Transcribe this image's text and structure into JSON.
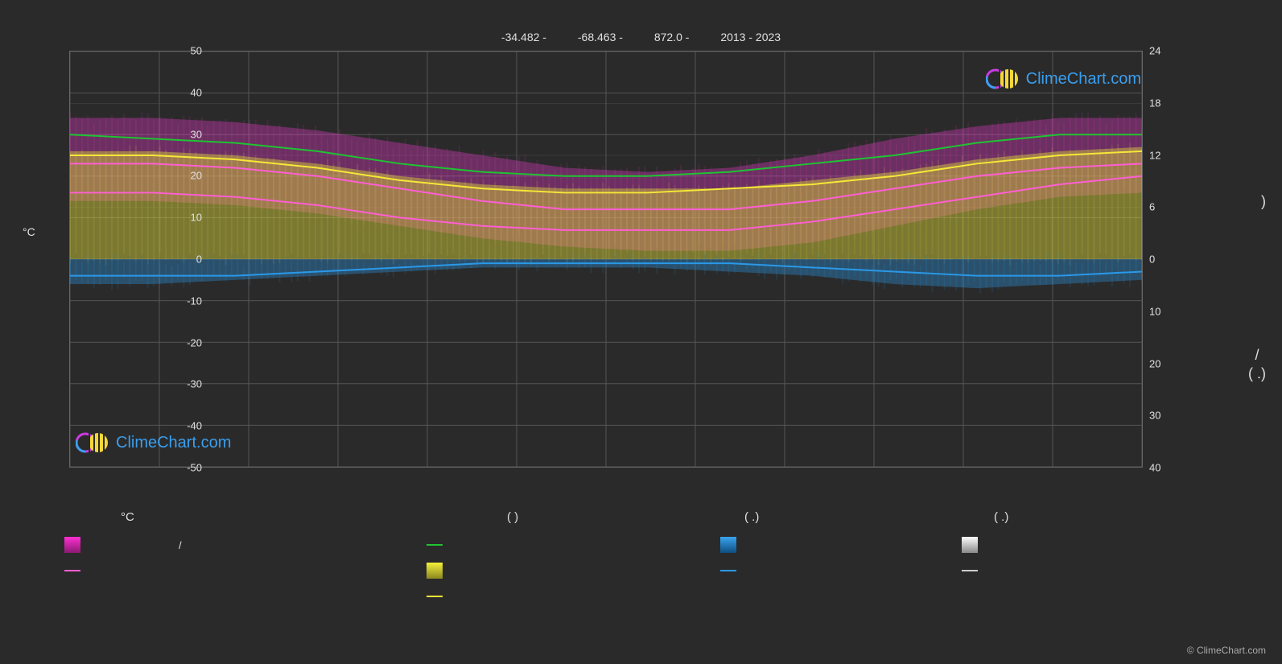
{
  "header": {
    "lat": "-34.482 -",
    "lon": "-68.463 -",
    "elev": "872.0 -",
    "years": "2013 - 2023"
  },
  "chart": {
    "type": "climate-chart",
    "background_color": "#2a2a2a",
    "plot_bg": "#333333",
    "grid_color": "#555555",
    "axis_left": {
      "title": "°C",
      "min": -50,
      "max": 50,
      "step": 10,
      "labels": [
        "50",
        "40",
        "30",
        "20",
        "10",
        "0",
        "-10",
        "-20",
        "-30",
        "-40",
        "-50"
      ]
    },
    "axis_right": {
      "top_title": ")",
      "mid_title_1": "/",
      "mid_title_2": "(   .)",
      "top_min": 0,
      "top_max": 24,
      "top_step": 6,
      "bot_min": 0,
      "bot_max": 40,
      "bot_step": 10,
      "labels_top": [
        "24",
        "18",
        "12",
        "6",
        "0"
      ],
      "labels_bot": [
        "10",
        "20",
        "30",
        "40"
      ]
    },
    "months_count": 12,
    "lines": {
      "green": {
        "color": "#1ec432",
        "width": 2,
        "values": [
          30,
          29,
          28,
          26,
          23,
          21,
          20,
          20,
          21,
          23,
          25,
          28,
          30,
          30
        ]
      },
      "yellow": {
        "color": "#f5e838",
        "width": 2,
        "values": [
          25,
          25,
          24,
          22,
          19,
          17,
          16,
          16,
          17,
          18,
          20,
          23,
          25,
          26
        ]
      },
      "pink_upper": {
        "color": "#ff5ed4",
        "width": 2,
        "values": [
          23,
          23,
          22,
          20,
          17,
          14,
          12,
          12,
          12,
          14,
          17,
          20,
          22,
          23
        ]
      },
      "pink_lower": {
        "color": "#ff5ed4",
        "width": 2,
        "values": [
          16,
          16,
          15,
          13,
          10,
          8,
          7,
          7,
          7,
          9,
          12,
          15,
          18,
          20
        ]
      },
      "blue": {
        "color": "#2a99e8",
        "width": 2,
        "values": [
          -4,
          -4,
          -4,
          -3,
          -2,
          -1,
          -1,
          -1,
          -1,
          -2,
          -3,
          -4,
          -4,
          -3
        ]
      }
    },
    "bands": {
      "magenta_fill": {
        "top_values": [
          34,
          34,
          33,
          31,
          28,
          25,
          22,
          21,
          22,
          25,
          29,
          32,
          34,
          34
        ],
        "bottom_values": [
          14,
          14,
          13,
          11,
          8,
          5,
          3,
          2,
          2,
          4,
          8,
          12,
          15,
          16
        ],
        "color": "#e838c8",
        "opacity": 0.35
      },
      "yellow_fill": {
        "top_values": [
          26,
          26,
          25,
          23,
          20,
          18,
          17,
          17,
          17,
          19,
          21,
          24,
          26,
          27
        ],
        "bottom_values": [
          0,
          0,
          0,
          0,
          0,
          0,
          0,
          0,
          0,
          0,
          0,
          0,
          0,
          0
        ],
        "color": "#dcd83a",
        "opacity": 0.45
      },
      "blue_bars": {
        "top_values": [
          0,
          0,
          0,
          0,
          0,
          0,
          0,
          0,
          0,
          0,
          0,
          0,
          0,
          0
        ],
        "bottom_values": [
          -6,
          -6,
          -5,
          -4,
          -3,
          -2,
          -2,
          -2,
          -3,
          -4,
          -6,
          -7,
          -6,
          -5
        ],
        "color": "#2a99e8",
        "opacity": 0.35
      }
    }
  },
  "logo": {
    "text": "ClimeChart.com"
  },
  "legend": {
    "col1_title": "°C",
    "col2_title": "(            )",
    "col3_title": "(   .)",
    "col4_title": "(   .)",
    "items": [
      {
        "swatch_type": "gradient",
        "color1": "#ff2fd4",
        "color2": "#8a1a72",
        "label": "/"
      },
      {
        "swatch_type": "line",
        "color": "#ff5ed4",
        "label": ""
      },
      {
        "swatch_type": "line",
        "color": "#1ec432",
        "label": ""
      },
      {
        "swatch_type": "gradient",
        "color1": "#f5f03a",
        "color2": "#8a8720",
        "label": ""
      },
      {
        "swatch_type": "line",
        "color": "#f5e838",
        "label": ""
      },
      {
        "swatch_type": "gradient",
        "color1": "#3aa5ef",
        "color2": "#0d4d80",
        "label": ""
      },
      {
        "swatch_type": "line",
        "color": "#2a99e8",
        "label": ""
      },
      {
        "swatch_type": "gradient",
        "color1": "#ffffff",
        "color2": "#888888",
        "label": ""
      },
      {
        "swatch_type": "line",
        "color": "#cccccc",
        "label": ""
      }
    ]
  },
  "copyright": "© ClimeChart.com",
  "x_tick_positions": [
    0.04,
    0.12,
    0.2,
    0.28,
    0.37,
    0.45,
    0.53,
    0.62,
    0.7,
    0.78,
    0.87,
    0.95
  ]
}
